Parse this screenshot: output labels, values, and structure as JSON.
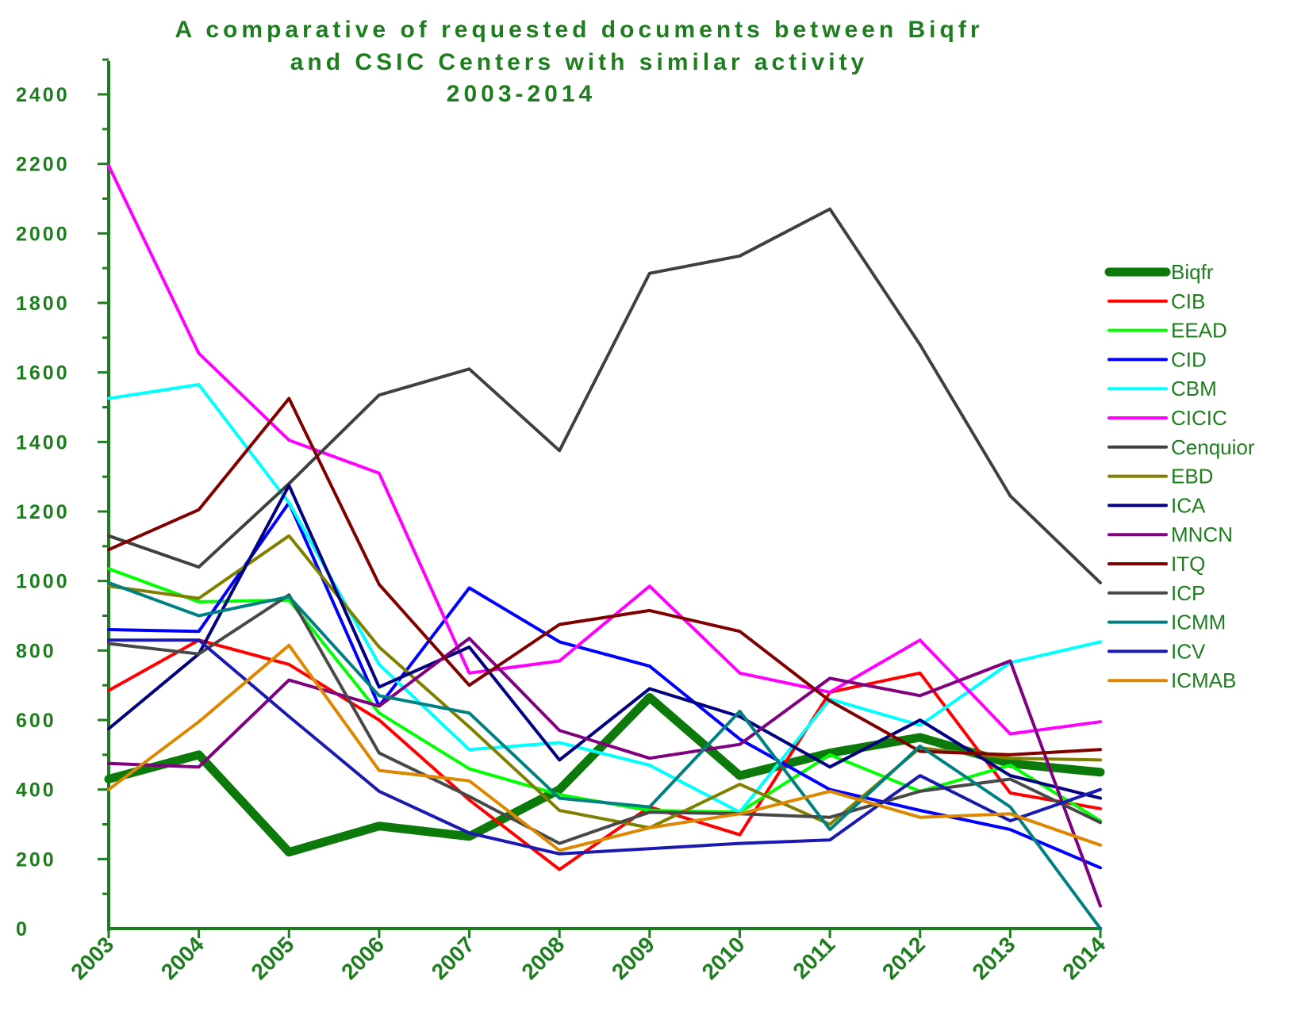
{
  "chart_data": {
    "type": "line",
    "title_lines": [
      "A comparative of requested documents between Biqfr",
      "and CSIC Centers with similar activity",
      "2003-2014"
    ],
    "xlabel": "",
    "ylabel": "",
    "x": [
      "2003",
      "2004",
      "2005",
      "2006",
      "2007",
      "2008",
      "2009",
      "2010",
      "2011",
      "2012",
      "2013",
      "2014"
    ],
    "ylim": [
      0,
      2500
    ],
    "yticks": [
      0,
      200,
      400,
      600,
      800,
      1000,
      1200,
      1400,
      1600,
      1800,
      2000,
      2200,
      2400
    ],
    "yticks_label": [
      "0",
      "200",
      "400",
      "600",
      "800",
      "1000",
      "1200",
      "1400",
      "1600",
      "1800",
      "2000",
      "2200",
      "2400"
    ],
    "grid": false,
    "legend_position": "right",
    "axis_color": "#1e7d1e",
    "series": [
      {
        "name": "Biqfr",
        "color": "#0b7a0b",
        "thick": true,
        "values": [
          430,
          500,
          220,
          295,
          265,
          400,
          665,
          440,
          505,
          550,
          475,
          450
        ]
      },
      {
        "name": "CIB",
        "color": "#ff0000",
        "values": [
          685,
          830,
          760,
          600,
          370,
          170,
          350,
          270,
          680,
          735,
          390,
          345
        ]
      },
      {
        "name": "EEAD",
        "color": "#00ff00",
        "values": [
          1035,
          940,
          945,
          620,
          460,
          385,
          340,
          335,
          500,
          395,
          470,
          310
        ]
      },
      {
        "name": "CID",
        "color": "#0000ff",
        "values": [
          860,
          855,
          1225,
          640,
          980,
          825,
          755,
          545,
          400,
          340,
          285,
          175
        ]
      },
      {
        "name": "CBM",
        "color": "#00ffff",
        "values": [
          1525,
          1565,
          1225,
          760,
          515,
          535,
          470,
          335,
          660,
          585,
          765,
          825
        ]
      },
      {
        "name": "CICIC",
        "color": "#ff00ff",
        "values": [
          2195,
          1655,
          1405,
          1310,
          735,
          770,
          985,
          735,
          680,
          830,
          560,
          595
        ]
      },
      {
        "name": "Cenquior",
        "color": "#404040",
        "values": [
          1130,
          1040,
          1280,
          1535,
          1610,
          1375,
          1885,
          1935,
          2070,
          1680,
          1245,
          995
        ]
      },
      {
        "name": "EBD",
        "color": "#808000",
        "values": [
          985,
          950,
          1130,
          810,
          580,
          340,
          290,
          415,
          300,
          520,
          490,
          485
        ]
      },
      {
        "name": "ICA",
        "color": "#000080",
        "values": [
          575,
          790,
          1275,
          695,
          810,
          485,
          690,
          610,
          465,
          600,
          440,
          375
        ]
      },
      {
        "name": "MNCN",
        "color": "#800080",
        "values": [
          475,
          465,
          715,
          640,
          835,
          570,
          490,
          530,
          720,
          670,
          770,
          65
        ]
      },
      {
        "name": "ITQ",
        "color": "#800000",
        "values": [
          1090,
          1205,
          1525,
          990,
          700,
          875,
          915,
          855,
          655,
          510,
          500,
          515
        ]
      },
      {
        "name": "ICP",
        "color": "#484848",
        "values": [
          820,
          790,
          960,
          505,
          380,
          245,
          335,
          330,
          320,
          395,
          430,
          305
        ]
      },
      {
        "name": "ICMM",
        "color": "#008080",
        "values": [
          995,
          900,
          955,
          670,
          620,
          375,
          350,
          625,
          285,
          525,
          350,
          0
        ]
      },
      {
        "name": "ICV",
        "color": "#1a1ab0",
        "values": [
          830,
          830,
          610,
          395,
          275,
          215,
          230,
          245,
          255,
          440,
          310,
          400
        ]
      },
      {
        "name": "ICMAB",
        "color": "#dd8800",
        "values": [
          400,
          595,
          815,
          455,
          425,
          225,
          290,
          330,
          395,
          320,
          330,
          240
        ]
      }
    ]
  }
}
